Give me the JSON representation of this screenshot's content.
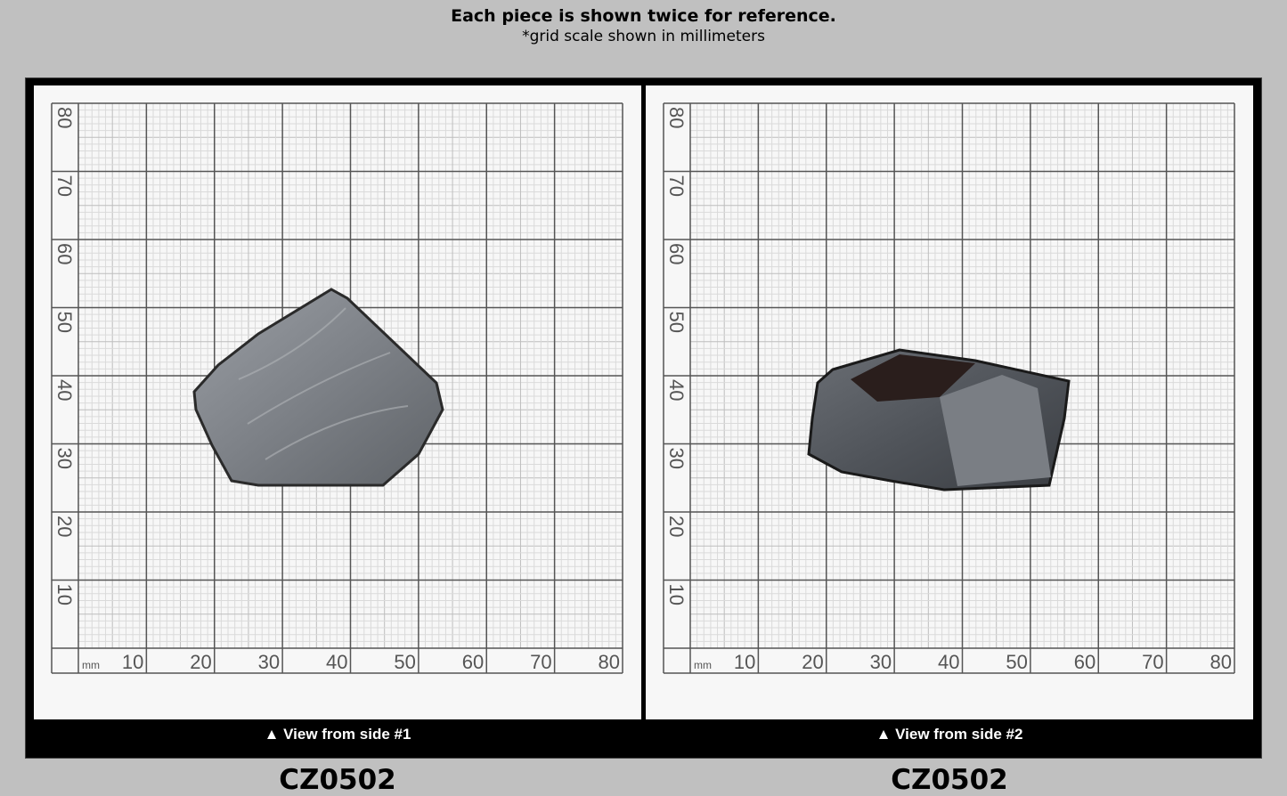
{
  "header": {
    "title": "Each piece is shown twice for reference.",
    "subtitle": "*grid scale shown in millimeters"
  },
  "grid": {
    "unit": "mm",
    "x_labels": [
      "10",
      "20",
      "30",
      "40",
      "50",
      "60",
      "70",
      "80"
    ],
    "y_labels": [
      "80",
      "70",
      "60",
      "50",
      "40",
      "30",
      "20",
      "10"
    ]
  },
  "panels": [
    {
      "code": "CZ0502",
      "caption": "▲ View from side #1"
    },
    {
      "code": "CZ0502",
      "caption": "▲ View from side #2"
    }
  ],
  "colors": {
    "background": "#c0c0c0",
    "frame": "#000000",
    "paper": "#f7f7f7",
    "grid_major": "#555555",
    "grid_minor": "#cfcfcf"
  }
}
